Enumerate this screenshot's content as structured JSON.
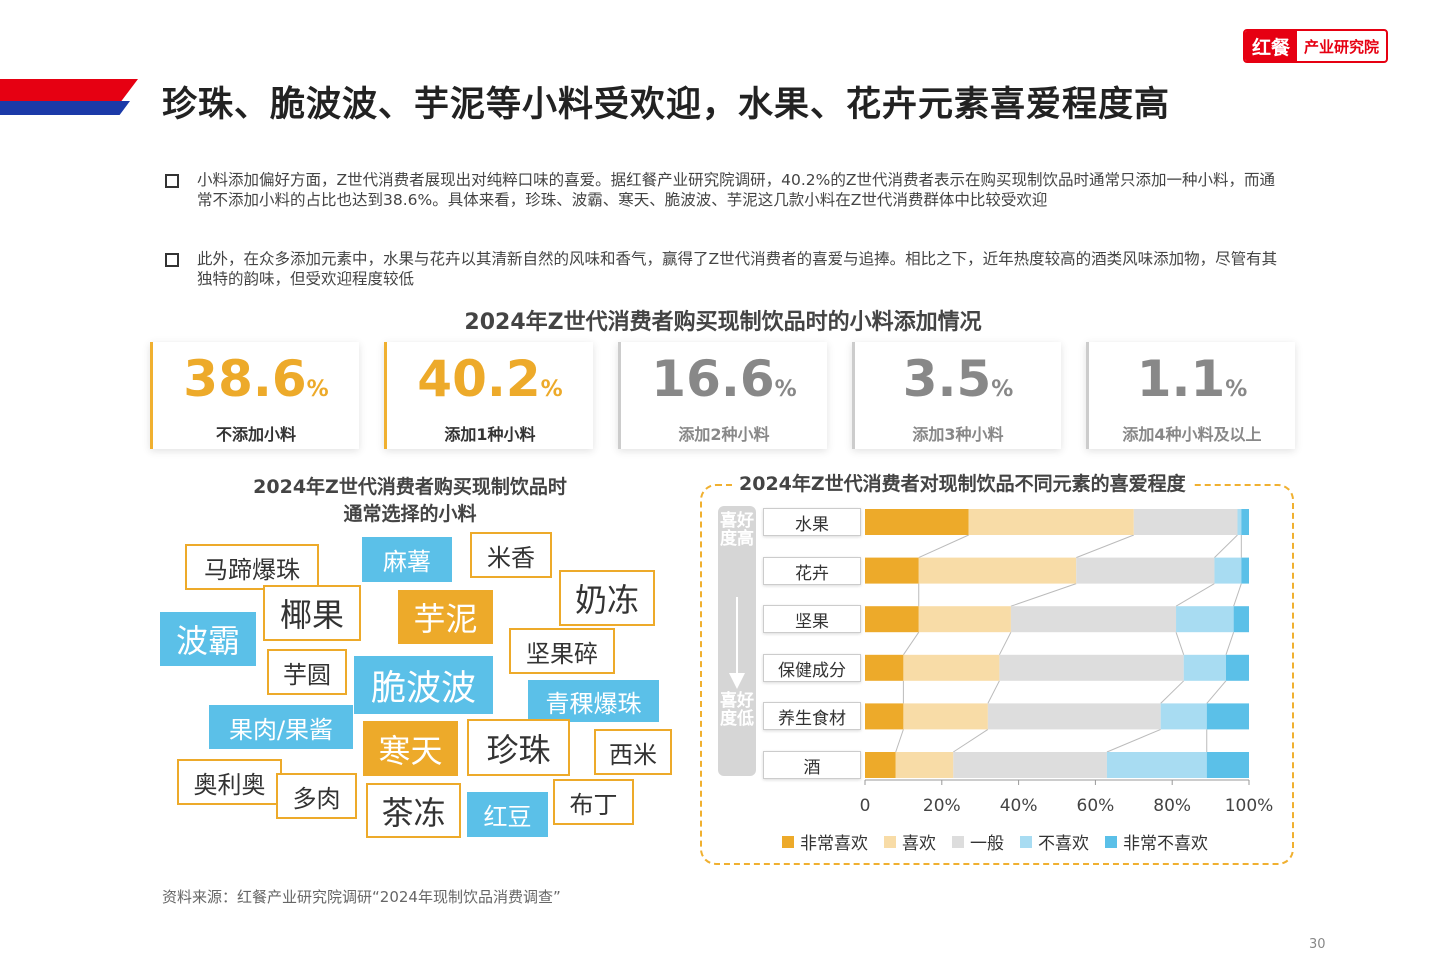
{
  "header": {
    "title": "珍珠、脆波波、芋泥等小料受欢迎，水果、花卉元素喜爱程度高",
    "logo_left": "红餐",
    "logo_right": "产业研究院"
  },
  "bullets": [
    "小料添加偏好方面，Z世代消费者展现出对纯粹口味的喜爱。据红餐产业研究院调研，40.2%的Z世代消费者表示在购买现制饮品时通常只添加一种小料，而通常不添加小料的占比也达到38.6%。具体来看，珍珠、波霸、寒天、脆波波、芋泥这几款小料在Z世代消费群体中比较受欢迎",
    "此外，在众多添加元素中，水果与花卉以其清新自然的风味和香气，赢得了Z世代消费者的喜爱与追捧。相比之下，近年热度较高的酒类风味添加物，尽管有其独特的韵味，但受欢迎程度较低"
  ],
  "stats": {
    "title": "2024年Z世代消费者购买现制饮品时的小料添加情况",
    "items": [
      {
        "value": "38.6",
        "unit": "%",
        "label": "不添加小料"
      },
      {
        "value": "40.2",
        "unit": "%",
        "label": "添加1种小料"
      },
      {
        "value": "16.6",
        "unit": "%",
        "label": "添加2种小料"
      },
      {
        "value": "3.5",
        "unit": "%",
        "label": "添加3种小料"
      },
      {
        "value": "1.1",
        "unit": "%",
        "label": "添加4种小料及以上"
      }
    ]
  },
  "wordcloud": {
    "title_line1": "2024年Z世代消费者购买现制饮品时",
    "title_line2": "通常选择的小料",
    "words": [
      "马蹄爆珠",
      "麻薯",
      "米香",
      "奶冻",
      "椰果",
      "芋泥",
      "波霸",
      "坚果碎",
      "芋圆",
      "脆波波",
      "青稞爆珠",
      "果肉/果酱",
      "寒天",
      "珍珠",
      "西米",
      "奥利奥",
      "多肉",
      "茶冻",
      "红豆",
      "布丁"
    ]
  },
  "chart_data": {
    "type": "bar",
    "orientation": "horizontal",
    "stacked": "100%",
    "title": "2024年Z世代消费者对现制饮品不同元素的喜爱程度",
    "axis_label_top": "喜好度高",
    "axis_label_bottom": "喜好度低",
    "categories": [
      "水果",
      "花卉",
      "坚果",
      "保健成分",
      "养生食材",
      "酒"
    ],
    "series": [
      {
        "name": "非常喜欢",
        "color": "#edaa2a",
        "values": [
          27,
          14,
          14,
          10,
          10,
          8
        ]
      },
      {
        "name": "喜欢",
        "color": "#f8dca7",
        "values": [
          43,
          41,
          24,
          25,
          22,
          15
        ]
      },
      {
        "name": "一般",
        "color": "#dddddd",
        "values": [
          27,
          36,
          43,
          48,
          45,
          40
        ]
      },
      {
        "name": "不喜欢",
        "color": "#a8dcf2",
        "values": [
          1,
          7,
          15,
          11,
          12,
          26
        ]
      },
      {
        "name": "非常不喜欢",
        "color": "#5bc0e8",
        "values": [
          2,
          2,
          4,
          6,
          11,
          11
        ]
      }
    ],
    "xlim": [
      0,
      100
    ],
    "xticks": [
      "0",
      "20%",
      "40%",
      "60%",
      "80%",
      "100%"
    ]
  },
  "footer": {
    "source": "资料来源：红餐产业研究院调研“2024年现制饮品消费调查”",
    "page": "30"
  }
}
